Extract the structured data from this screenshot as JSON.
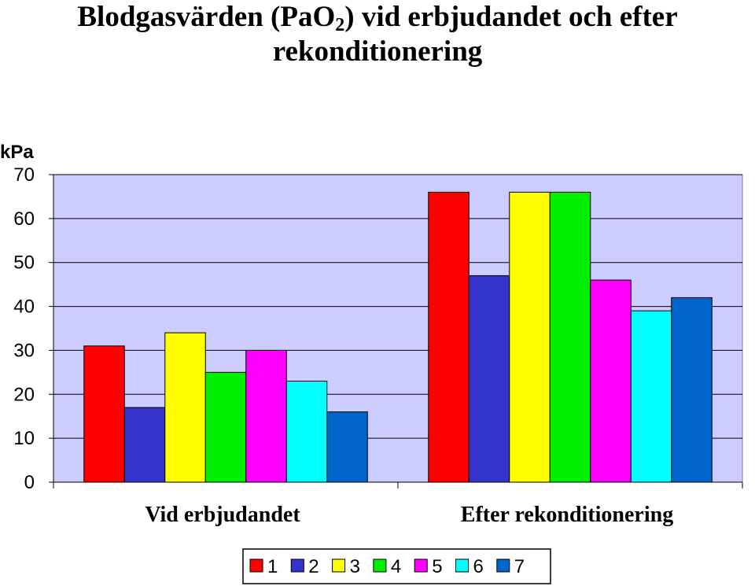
{
  "title": {
    "part1": "Blodgasvärden (PaO",
    "sub": "2",
    "part2": ") vid erbjudandet och efter",
    "line2": "rekonditionering"
  },
  "chart_data": {
    "type": "bar",
    "categories": [
      "Vid erbjudandet",
      "Efter rekonditionering"
    ],
    "series": [
      {
        "name": "1",
        "color": "#ff0000",
        "values": [
          31,
          66
        ]
      },
      {
        "name": "2",
        "color": "#3333cc",
        "values": [
          17,
          47
        ]
      },
      {
        "name": "3",
        "color": "#ffff00",
        "values": [
          34,
          66
        ]
      },
      {
        "name": "4",
        "color": "#00ee00",
        "values": [
          25,
          66
        ]
      },
      {
        "name": "5",
        "color": "#ff00ff",
        "values": [
          30,
          46
        ]
      },
      {
        "name": "6",
        "color": "#00ffff",
        "values": [
          23,
          39
        ]
      },
      {
        "name": "7",
        "color": "#0066cc",
        "values": [
          16,
          42
        ]
      }
    ],
    "ylabel": "kPa",
    "ylim": [
      0,
      70
    ],
    "yticks": [
      0,
      10,
      20,
      30,
      40,
      50,
      60,
      70
    ],
    "grid": true,
    "plot_background": "#ccccff",
    "legend": "bottom"
  }
}
